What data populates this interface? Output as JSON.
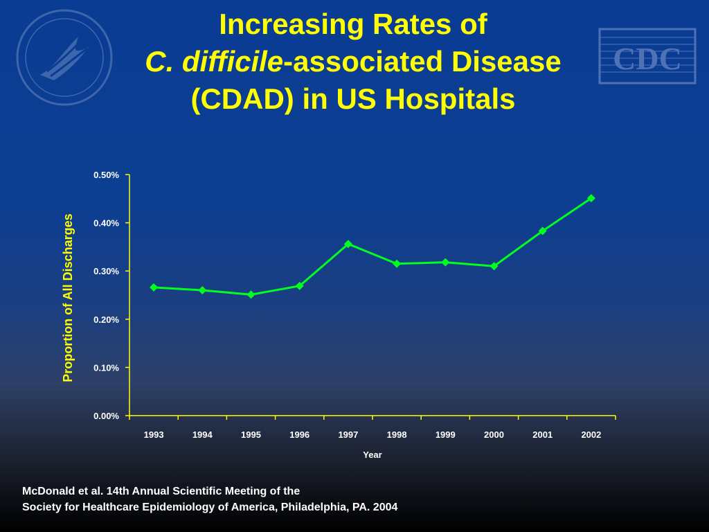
{
  "title": {
    "line1": "Increasing Rates of",
    "line2_italic": "C. difficile",
    "line2_rest": "-associated Disease",
    "line3": "(CDAD) in US Hospitals"
  },
  "logos": {
    "hhs": "HHS eagle seal",
    "cdc": "CDC"
  },
  "colors": {
    "title": "#ffff00",
    "series": "#00ff1e",
    "axis": "#ffff00",
    "text": "#ffffff"
  },
  "chart_data": {
    "type": "line",
    "categories": [
      "1993",
      "1994",
      "1995",
      "1996",
      "1997",
      "1998",
      "1999",
      "2000",
      "2001",
      "2002"
    ],
    "series": [
      {
        "values": [
          0.266,
          0.26,
          0.251,
          0.269,
          0.356,
          0.315,
          0.318,
          0.31,
          0.383,
          0.451
        ]
      }
    ],
    "ylabel": "Proportion of All Discharges",
    "xlabel": "Year",
    "ylim": [
      0,
      0.5
    ],
    "yticks": [
      "0.00%",
      "0.10%",
      "0.20%",
      "0.30%",
      "0.40%",
      "0.50%"
    ],
    "grid": false,
    "marker": "diamond"
  },
  "footer": {
    "line1": "McDonald et al. 14th Annual Scientific Meeting of the",
    "line2": "Society for Healthcare Epidemiology of America, Philadelphia, PA. 2004"
  }
}
